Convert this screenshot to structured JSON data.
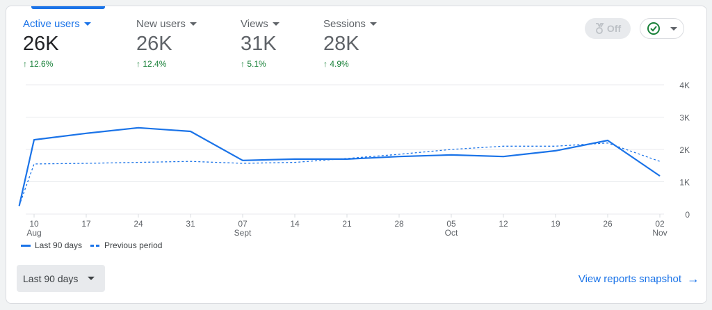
{
  "metrics": [
    {
      "label": "Active users",
      "value": "26K",
      "change": "12.6%",
      "active": true
    },
    {
      "label": "New users",
      "value": "26K",
      "change": "12.4%"
    },
    {
      "label": "Views",
      "value": "31K",
      "change": "5.1%"
    },
    {
      "label": "Sessions",
      "value": "28K",
      "change": "4.9%"
    }
  ],
  "insights_toggle": {
    "label": "Off",
    "icon": "medal-icon"
  },
  "status_menu": {
    "icon": "check-circle-icon"
  },
  "colors": {
    "accent": "#1a73e8",
    "positive": "#188038"
  },
  "chart_data": {
    "type": "line",
    "ylim": [
      0,
      4000
    ],
    "yticks": [
      "0",
      "1K",
      "2K",
      "3K",
      "4K"
    ],
    "xticks": [
      {
        "d": "10",
        "m": "Aug"
      },
      {
        "d": "17"
      },
      {
        "d": "24"
      },
      {
        "d": "31"
      },
      {
        "d": "07",
        "m": "Sept"
      },
      {
        "d": "14"
      },
      {
        "d": "21"
      },
      {
        "d": "28"
      },
      {
        "d": "05",
        "m": "Oct"
      },
      {
        "d": "12"
      },
      {
        "d": "19"
      },
      {
        "d": "26"
      },
      {
        "d": "02",
        "m": "Nov"
      }
    ],
    "x": [
      "Aug 8",
      "Aug 10",
      "Aug 17",
      "Aug 24",
      "Aug 31",
      "Sep 7",
      "Sep 14",
      "Sep 21",
      "Sep 28",
      "Oct 5",
      "Oct 12",
      "Oct 19",
      "Oct 26",
      "Nov 2"
    ],
    "series": [
      {
        "name": "Last 90 days",
        "style": "solid",
        "values": [
          250,
          2300,
          2500,
          2670,
          2560,
          1660,
          1700,
          1700,
          1780,
          1830,
          1780,
          1960,
          2280,
          1180
        ]
      },
      {
        "name": "Previous period",
        "style": "dashed",
        "values": [
          260,
          1550,
          1570,
          1600,
          1630,
          1570,
          1600,
          1720,
          1850,
          2000,
          2100,
          2100,
          2200,
          1630
        ]
      }
    ],
    "grid": true,
    "legend": "bottom-left"
  },
  "footer": {
    "range_label": "Last 90 days",
    "snapshot_link": "View reports snapshot"
  }
}
